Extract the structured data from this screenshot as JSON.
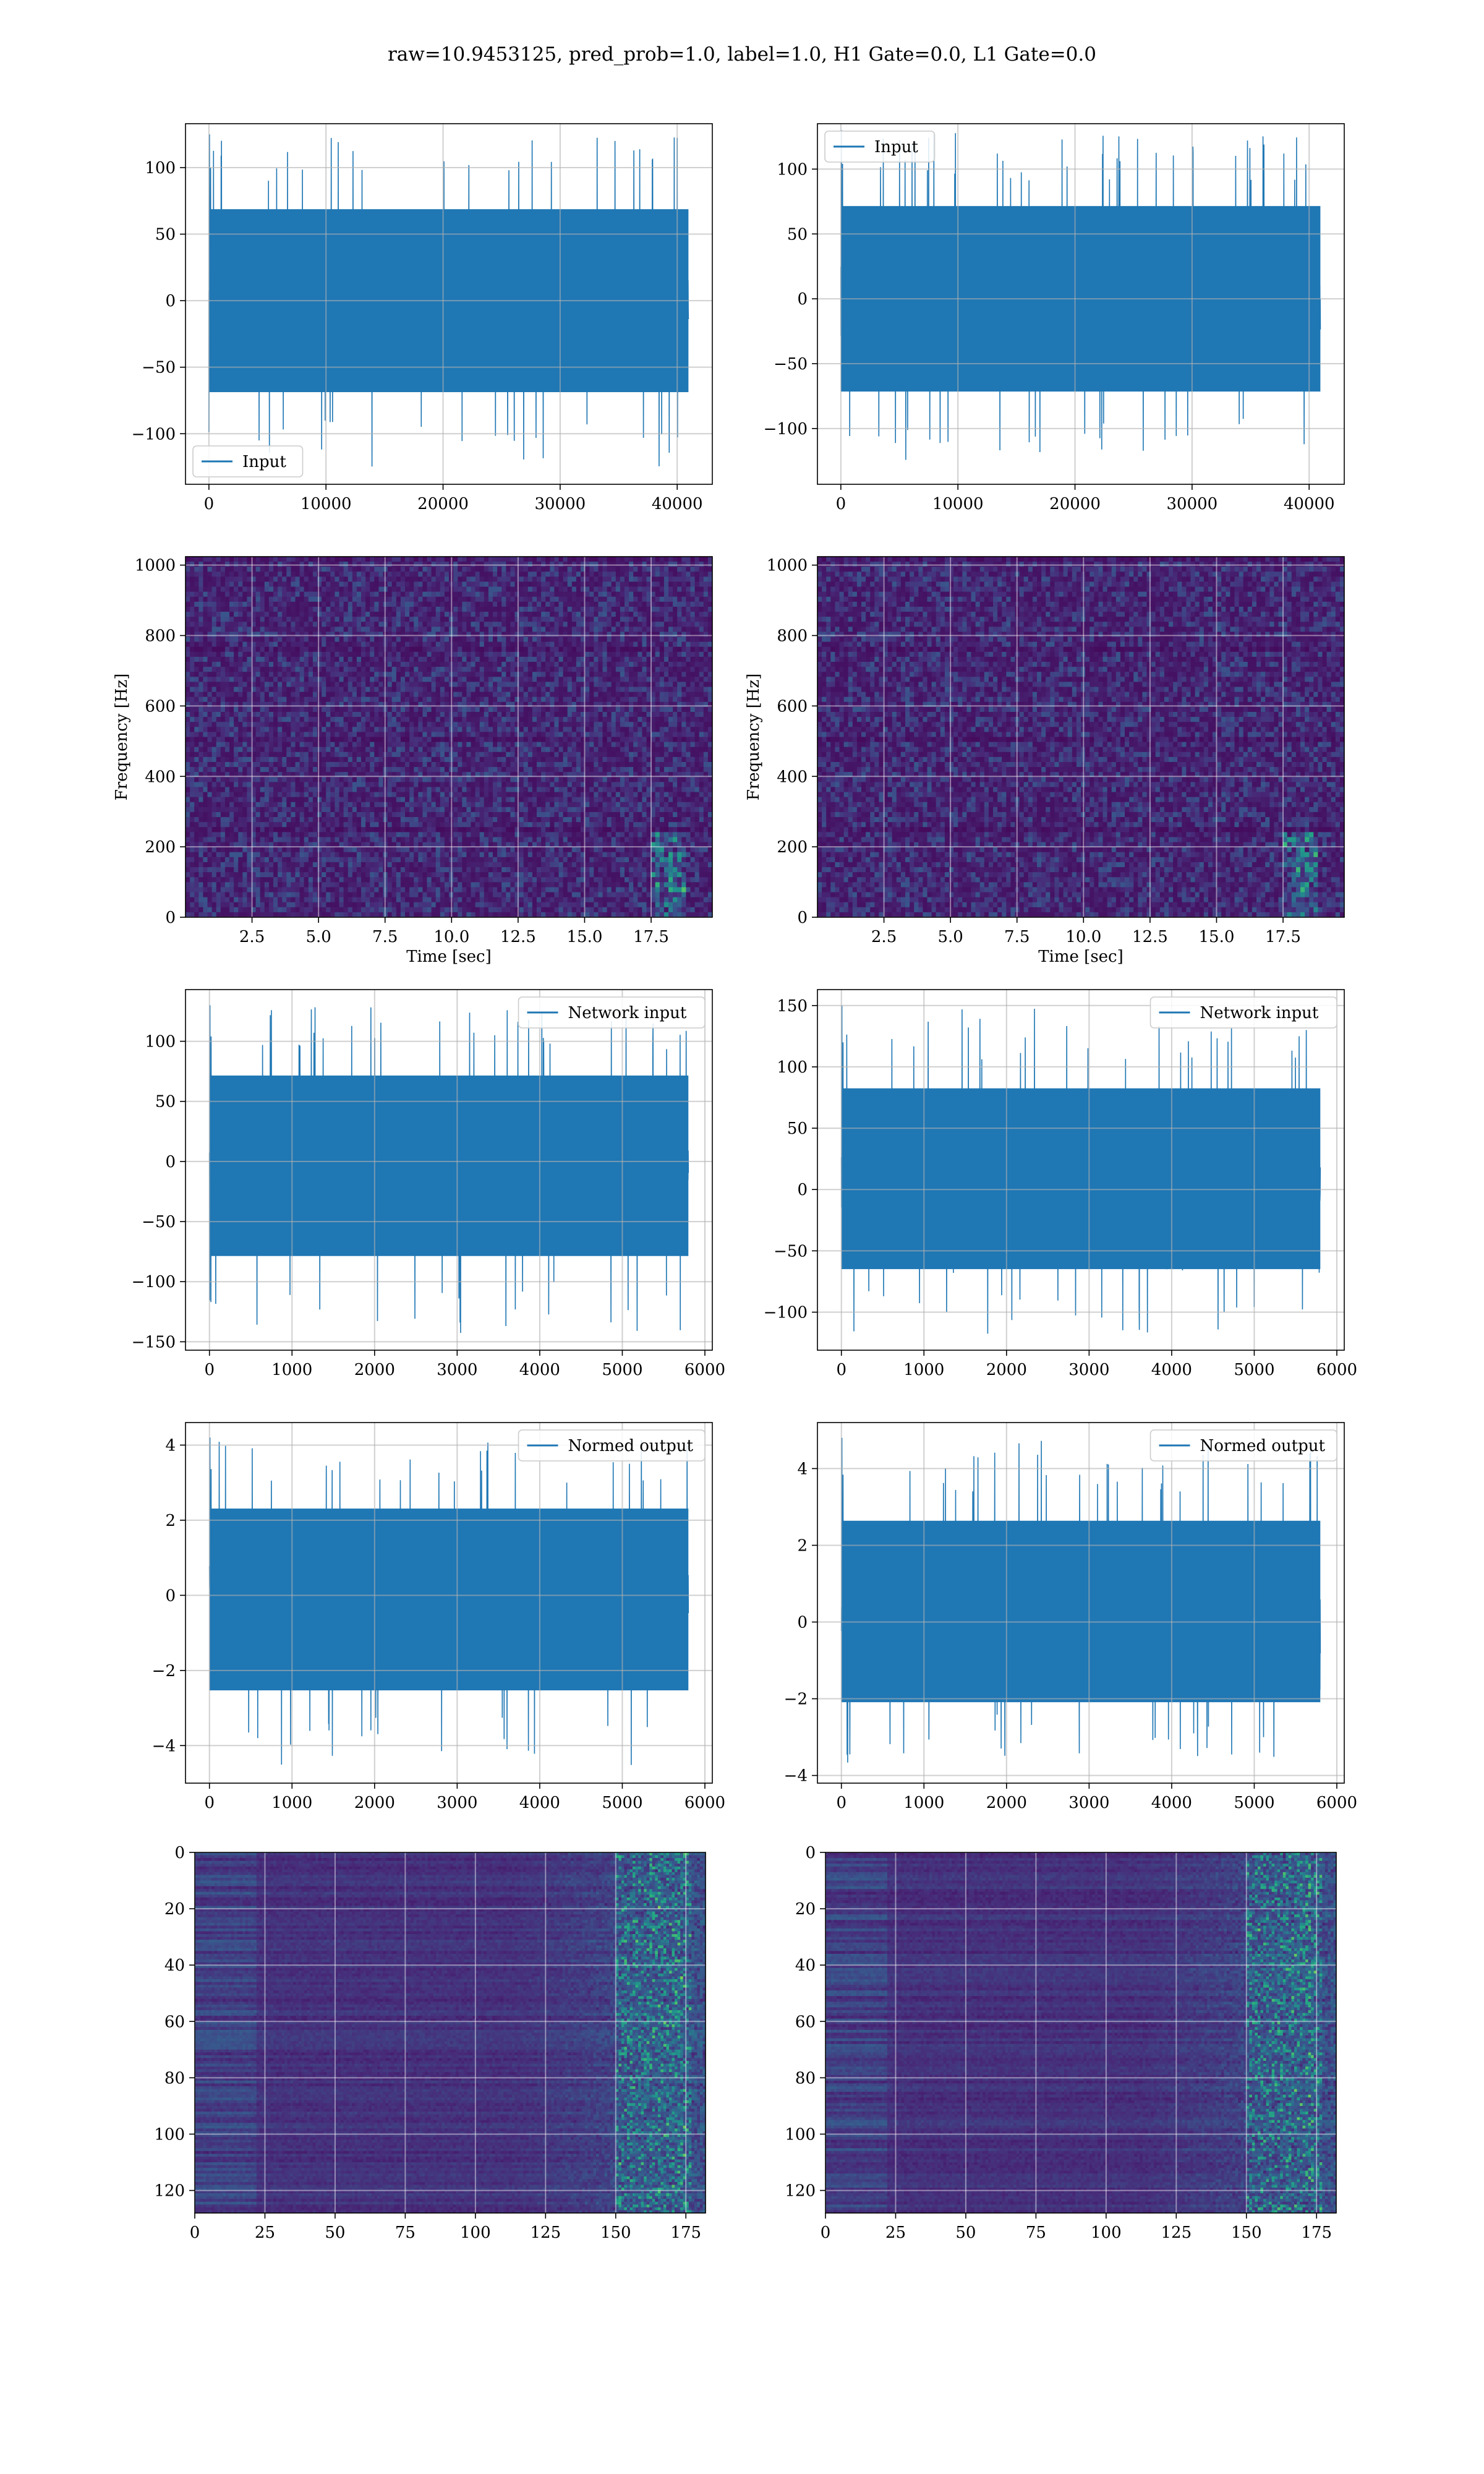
{
  "suptitle": "raw=10.9453125, pred_prob=1.0, label=1.0, H1 Gate=0.0, L1 Gate=0.0",
  "colors": {
    "line": "#1f77b4",
    "grid": "#b0b0b0",
    "viridis_low": "#440154",
    "viridis_high": "#fde725"
  },
  "chart_data": [
    {
      "id": "h1-input",
      "type": "line",
      "series": [
        {
          "name": "Input",
          "n_points": 40960,
          "amplitude_range": [
            -125,
            125
          ]
        }
      ],
      "xlim": [
        -2000,
        43000
      ],
      "ylim": [
        -138,
        133
      ],
      "xticks": [
        0,
        10000,
        20000,
        30000,
        40000
      ],
      "yticks": [
        -100,
        -50,
        0,
        50,
        100
      ],
      "xlabel": "",
      "ylabel": "",
      "legend": "lower-left",
      "grid": true
    },
    {
      "id": "l1-input",
      "type": "line",
      "series": [
        {
          "name": "Input",
          "n_points": 40960,
          "amplitude_range": [
            -130,
            130
          ]
        }
      ],
      "xlim": [
        -2000,
        43000
      ],
      "ylim": [
        -143,
        135
      ],
      "xticks": [
        0,
        10000,
        20000,
        30000,
        40000
      ],
      "yticks": [
        -100,
        -50,
        0,
        50,
        100
      ],
      "xlabel": "",
      "ylabel": "",
      "legend": "upper-left",
      "grid": true
    },
    {
      "id": "h1-spectrogram",
      "type": "heatmap",
      "colormap": "viridis",
      "xlim": [
        0,
        19.8
      ],
      "ylim": [
        0,
        1024
      ],
      "xticks": [
        2.5,
        5.0,
        7.5,
        10.0,
        12.5,
        15.0,
        17.5
      ],
      "yticks": [
        0,
        200,
        400,
        600,
        800,
        1000
      ],
      "xlabel": "Time [sec]",
      "ylabel": "Frequency [Hz]",
      "grid": true
    },
    {
      "id": "l1-spectrogram",
      "type": "heatmap",
      "colormap": "viridis",
      "xlim": [
        0,
        19.8
      ],
      "ylim": [
        0,
        1024
      ],
      "xticks": [
        2.5,
        5.0,
        7.5,
        10.0,
        12.5,
        15.0,
        17.5
      ],
      "yticks": [
        0,
        200,
        400,
        600,
        800,
        1000
      ],
      "xlabel": "Time [sec]",
      "ylabel": "Frequency [Hz]",
      "grid": true
    },
    {
      "id": "h1-network-input",
      "type": "line",
      "series": [
        {
          "name": "Network input",
          "n_points": 5800,
          "amplitude_range": [
            -143,
            130
          ]
        }
      ],
      "xlim": [
        -290,
        6090
      ],
      "ylim": [
        -157,
        143
      ],
      "xticks": [
        0,
        1000,
        2000,
        3000,
        4000,
        5000,
        6000
      ],
      "yticks": [
        -150,
        -100,
        -50,
        0,
        50,
        100
      ],
      "xlabel": "",
      "ylabel": "",
      "legend": "upper-right",
      "grid": true
    },
    {
      "id": "l1-network-input",
      "type": "line",
      "series": [
        {
          "name": "Network input",
          "n_points": 5800,
          "amplitude_range": [
            -118,
            150
          ]
        }
      ],
      "xlim": [
        -290,
        6090
      ],
      "ylim": [
        -131,
        163
      ],
      "xticks": [
        0,
        1000,
        2000,
        3000,
        4000,
        5000,
        6000
      ],
      "yticks": [
        -100,
        -50,
        0,
        50,
        100,
        150
      ],
      "xlabel": "",
      "ylabel": "",
      "legend": "upper-right",
      "grid": true
    },
    {
      "id": "h1-normed-output",
      "type": "line",
      "series": [
        {
          "name": "Normed output",
          "n_points": 5800,
          "amplitude_range": [
            -4.6,
            4.2
          ]
        }
      ],
      "xlim": [
        -290,
        6090
      ],
      "ylim": [
        -5.0,
        4.6
      ],
      "xticks": [
        0,
        1000,
        2000,
        3000,
        4000,
        5000,
        6000
      ],
      "yticks": [
        -4,
        -2,
        0,
        2,
        4
      ],
      "xlabel": "",
      "ylabel": "",
      "legend": "upper-right",
      "grid": true
    },
    {
      "id": "l1-normed-output",
      "type": "line",
      "series": [
        {
          "name": "Normed output",
          "n_points": 5800,
          "amplitude_range": [
            -3.8,
            4.8
          ]
        }
      ],
      "xlim": [
        -290,
        6090
      ],
      "ylim": [
        -4.2,
        5.2
      ],
      "xticks": [
        0,
        1000,
        2000,
        3000,
        4000,
        5000,
        6000
      ],
      "yticks": [
        -4,
        -2,
        0,
        2,
        4
      ],
      "xlabel": "",
      "ylabel": "",
      "legend": "upper-right",
      "grid": true
    },
    {
      "id": "h1-feature-map",
      "type": "heatmap",
      "colormap": "viridis",
      "xlim": [
        0,
        182
      ],
      "ylim": [
        128,
        0
      ],
      "xticks": [
        0,
        25,
        50,
        75,
        100,
        125,
        150,
        175
      ],
      "yticks": [
        0,
        20,
        40,
        60,
        80,
        100,
        120
      ],
      "xlabel": "",
      "ylabel": "",
      "grid": true
    },
    {
      "id": "l1-feature-map",
      "type": "heatmap",
      "colormap": "viridis",
      "xlim": [
        0,
        182
      ],
      "ylim": [
        128,
        0
      ],
      "xticks": [
        0,
        25,
        50,
        75,
        100,
        125,
        150,
        175
      ],
      "yticks": [
        0,
        20,
        40,
        60,
        80,
        100,
        120
      ],
      "xlabel": "",
      "ylabel": "",
      "grid": true
    }
  ]
}
